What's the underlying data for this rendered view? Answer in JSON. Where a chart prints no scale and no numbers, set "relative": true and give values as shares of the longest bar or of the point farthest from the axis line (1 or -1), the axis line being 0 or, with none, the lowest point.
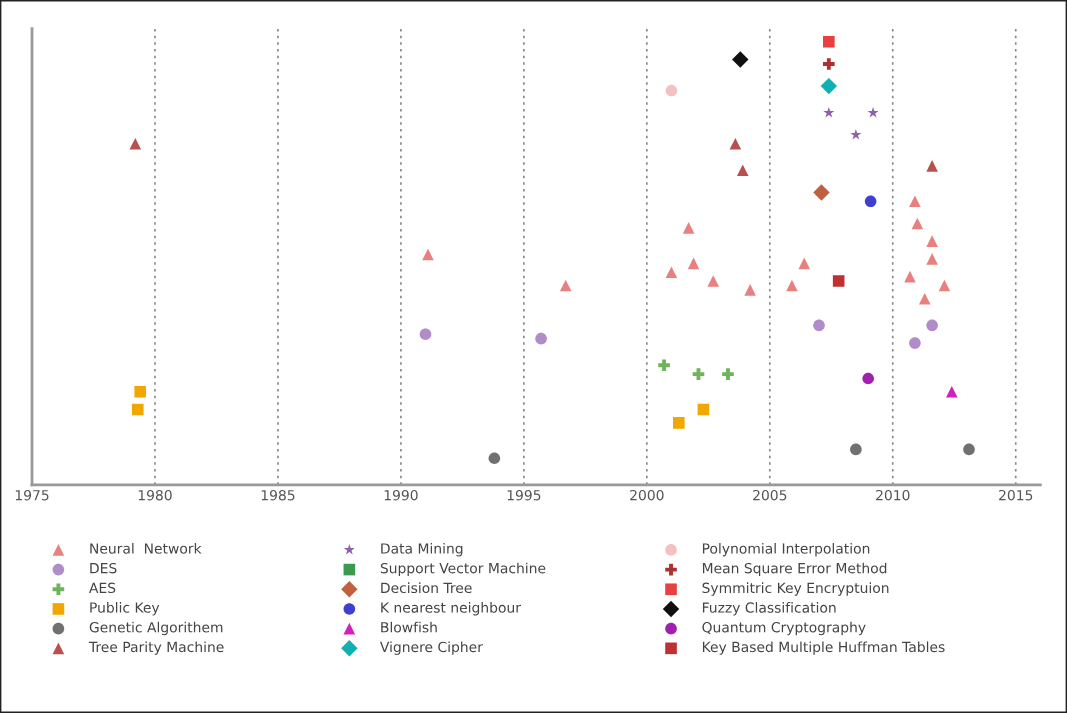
{
  "chart_data": {
    "type": "scatter",
    "relative": true,
    "xlim": [
      1975,
      2016
    ],
    "xticks": [
      1975,
      1980,
      1985,
      1990,
      1995,
      2000,
      2005,
      2010,
      2015
    ],
    "grid": "x",
    "tick_labels": "x",
    "legend": "bottom",
    "series": [
      {
        "name": "Neural  Network",
        "color": "#e88080",
        "marker": "triangle",
        "x": [
          1991.1,
          1996.7,
          2001.7,
          2001.0,
          2001.9,
          2002.7,
          2004.2,
          2005.9,
          2006.4,
          2010.9,
          2011.0,
          2011.6,
          2011.6,
          2010.7,
          2012.1,
          2011.3
        ],
        "values": [
          0.52,
          0.45,
          0.58,
          0.48,
          0.5,
          0.46,
          0.44,
          0.45,
          0.5,
          0.64,
          0.59,
          0.55,
          0.51,
          0.47,
          0.45,
          0.42
        ]
      },
      {
        "name": "DES",
        "color": "#b08cc8",
        "marker": "circle",
        "x": [
          1991.0,
          1995.7,
          2007.0,
          2011.6,
          2010.9
        ],
        "values": [
          0.34,
          0.33,
          0.36,
          0.36,
          0.32
        ]
      },
      {
        "name": "AES",
        "color": "#6fb35a",
        "marker": "cross",
        "x": [
          2000.7,
          2002.1,
          2003.3
        ],
        "values": [
          0.27,
          0.25,
          0.25
        ]
      },
      {
        "name": "Public Key",
        "color": "#f0a800",
        "marker": "square",
        "x": [
          1979.4,
          1979.3,
          2001.3,
          2002.3
        ],
        "values": [
          0.21,
          0.17,
          0.14,
          0.17
        ]
      },
      {
        "name": "Genetic Algorithem",
        "color": "#707070",
        "marker": "circle",
        "x": [
          1993.8,
          2008.5,
          2013.1
        ],
        "values": [
          0.06,
          0.08,
          0.08
        ]
      },
      {
        "name": "Tree Parity Machine",
        "color": "#b85050",
        "marker": "triangle",
        "x": [
          1979.2,
          2003.6,
          2003.9,
          2011.6
        ],
        "values": [
          0.77,
          0.77,
          0.71,
          0.72
        ]
      },
      {
        "name": "Data Mining",
        "color": "#9060a8",
        "marker": "star",
        "x": [
          2007.4,
          2009.2,
          2008.5
        ],
        "values": [
          0.84,
          0.84,
          0.79
        ]
      },
      {
        "name": "Support Vector Machine",
        "color": "#3a9a50",
        "marker": "square"
      },
      {
        "name": "Decision Tree",
        "color": "#c06040",
        "marker": "diamond",
        "x": [
          2007.1
        ],
        "values": [
          0.66
        ]
      },
      {
        "name": "K nearest neighbour",
        "color": "#4040d0",
        "marker": "circle",
        "x": [
          2009.1
        ],
        "values": [
          0.64
        ]
      },
      {
        "name": "Blowfish",
        "color": "#d020c0",
        "marker": "triangle",
        "x": [
          2012.4
        ],
        "values": [
          0.21
        ]
      },
      {
        "name": "Vignere Cipher",
        "color": "#10b0b0",
        "marker": "diamond",
        "x": [
          2007.4
        ],
        "values": [
          0.9
        ]
      },
      {
        "name": "Polynomial Interpolation",
        "color": "#f4c0c0",
        "marker": "circle",
        "x": [
          2001.0
        ],
        "values": [
          0.89
        ]
      },
      {
        "name": "Mean Square Error Method",
        "color": "#b03030",
        "marker": "cross",
        "x": [
          2007.4
        ],
        "values": [
          0.95
        ]
      },
      {
        "name": "Symmitric Key Encryptuion",
        "color": "#e84040",
        "marker": "square",
        "x": [
          2007.4
        ],
        "values": [
          1.0
        ]
      },
      {
        "name": "Fuzzy Classification",
        "color": "#101010",
        "marker": "diamond",
        "x": [
          2003.8
        ],
        "values": [
          0.96
        ]
      },
      {
        "name": "Quantum Cryptography",
        "color": "#a020b0",
        "marker": "circle",
        "x": [
          2009.0
        ],
        "values": [
          0.24
        ]
      },
      {
        "name": "Key Based Multiple Huffman Tables",
        "color": "#c03030",
        "marker": "square",
        "x": [
          2007.8
        ],
        "values": [
          0.46
        ]
      }
    ]
  }
}
